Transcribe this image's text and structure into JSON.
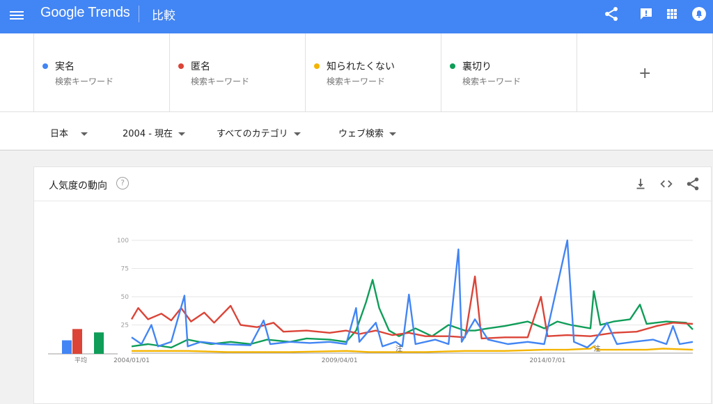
{
  "header": {
    "logo": "Google Trends",
    "title": "比較"
  },
  "terms": [
    {
      "name": "実名",
      "sub": "検索キーワード",
      "color": "#4285f4"
    },
    {
      "name": "匿名",
      "sub": "検索キーワード",
      "color": "#db4437"
    },
    {
      "name": "知られたくない",
      "sub": "検索キーワード",
      "color": "#f4b400"
    },
    {
      "name": "裏切り",
      "sub": "検索キーワード",
      "color": "#0f9d58"
    }
  ],
  "add_term": "+",
  "filters": {
    "region": "日本",
    "period": "2004 - 現在",
    "category": "すべてのカテゴリ",
    "search_type": "ウェブ検索"
  },
  "card": {
    "title": "人気度の動向",
    "help": "?",
    "average_label": "平均"
  },
  "chart_data": {
    "type": "line",
    "x_ticks": [
      "2004/01/01",
      "2009/04/01",
      "2014/07/01"
    ],
    "y_ticks": [
      25,
      50,
      75,
      100
    ],
    "ylim": [
      0,
      100
    ],
    "grid": true,
    "annotation_text": "注",
    "annotations": [
      {
        "x": "2010/10"
      },
      {
        "x": "2015/10"
      }
    ],
    "averages": [
      {
        "name": "実名",
        "value": 12,
        "color": "#4285f4"
      },
      {
        "name": "匿名",
        "value": 22,
        "color": "#db4437"
      },
      {
        "name": "知られたくない",
        "value": 1,
        "color": "#f4b400"
      },
      {
        "name": "裏切り",
        "value": 19,
        "color": "#0f9d58"
      }
    ],
    "x_start": "2004/01",
    "x_end": "2018/03",
    "series": [
      {
        "name": "実名",
        "color": "#4285f4",
        "points": [
          [
            "2004/01",
            14
          ],
          [
            "2004/04",
            8
          ],
          [
            "2004/07",
            25
          ],
          [
            "2004/09",
            6
          ],
          [
            "2005/01",
            10
          ],
          [
            "2005/05",
            51
          ],
          [
            "2005/06",
            6
          ],
          [
            "2005/10",
            10
          ],
          [
            "2006/04",
            8
          ],
          [
            "2007/01",
            7
          ],
          [
            "2007/05",
            29
          ],
          [
            "2007/07",
            8
          ],
          [
            "2008/01",
            10
          ],
          [
            "2008/07",
            9
          ],
          [
            "2009/01",
            10
          ],
          [
            "2009/06",
            8
          ],
          [
            "2009/09",
            40
          ],
          [
            "2009/10",
            10
          ],
          [
            "2010/03",
            27
          ],
          [
            "2010/05",
            6
          ],
          [
            "2010/09",
            10
          ],
          [
            "2010/11",
            6
          ],
          [
            "2011/01",
            52
          ],
          [
            "2011/03",
            8
          ],
          [
            "2011/09",
            12
          ],
          [
            "2012/01",
            8
          ],
          [
            "2012/04",
            92
          ],
          [
            "2012/05",
            10
          ],
          [
            "2012/09",
            30
          ],
          [
            "2013/01",
            12
          ],
          [
            "2013/07",
            8
          ],
          [
            "2014/01",
            10
          ],
          [
            "2014/06",
            8
          ],
          [
            "2015/01",
            100
          ],
          [
            "2015/03",
            10
          ],
          [
            "2015/07",
            5
          ],
          [
            "2015/09",
            10
          ],
          [
            "2016/01",
            27
          ],
          [
            "2016/04",
            8
          ],
          [
            "2016/09",
            10
          ],
          [
            "2017/03",
            12
          ],
          [
            "2017/07",
            8
          ],
          [
            "2017/09",
            24
          ],
          [
            "2017/11",
            8
          ],
          [
            "2018/03",
            10
          ]
        ]
      },
      {
        "name": "匿名",
        "color": "#db4437",
        "points": [
          [
            "2004/01",
            30
          ],
          [
            "2004/03",
            40
          ],
          [
            "2004/06",
            30
          ],
          [
            "2004/10",
            35
          ],
          [
            "2005/01",
            29
          ],
          [
            "2005/04",
            40
          ],
          [
            "2005/07",
            28
          ],
          [
            "2005/11",
            36
          ],
          [
            "2006/02",
            27
          ],
          [
            "2006/07",
            42
          ],
          [
            "2006/10",
            25
          ],
          [
            "2007/03",
            23
          ],
          [
            "2007/08",
            27
          ],
          [
            "2007/11",
            19
          ],
          [
            "2008/06",
            20
          ],
          [
            "2009/01",
            18
          ],
          [
            "2009/06",
            20
          ],
          [
            "2009/10",
            17
          ],
          [
            "2010/03",
            20
          ],
          [
            "2010/08",
            16
          ],
          [
            "2011/01",
            18
          ],
          [
            "2011/06",
            15
          ],
          [
            "2012/01",
            15
          ],
          [
            "2012/06",
            14
          ],
          [
            "2012/09",
            68
          ],
          [
            "2012/11",
            13
          ],
          [
            "2013/06",
            14
          ],
          [
            "2014/01",
            14
          ],
          [
            "2014/05",
            50
          ],
          [
            "2014/07",
            15
          ],
          [
            "2015/01",
            16
          ],
          [
            "2015/08",
            15
          ],
          [
            "2016/03",
            18
          ],
          [
            "2016/10",
            19
          ],
          [
            "2017/04",
            24
          ],
          [
            "2017/09",
            27
          ],
          [
            "2018/03",
            26
          ]
        ]
      },
      {
        "name": "知られたくない",
        "color": "#f4b400",
        "points": [
          [
            "2004/01",
            2
          ],
          [
            "2005/06",
            2
          ],
          [
            "2006/06",
            1
          ],
          [
            "2008/01",
            1
          ],
          [
            "2009/06",
            2
          ],
          [
            "2010/01",
            1
          ],
          [
            "2011/06",
            1
          ],
          [
            "2012/06",
            2
          ],
          [
            "2013/06",
            2
          ],
          [
            "2014/06",
            3
          ],
          [
            "2015/01",
            3
          ],
          [
            "2015/08",
            4
          ],
          [
            "2015/09",
            6
          ],
          [
            "2015/10",
            3
          ],
          [
            "2016/06",
            3
          ],
          [
            "2017/01",
            3
          ],
          [
            "2017/06",
            4
          ],
          [
            "2018/03",
            3
          ]
        ]
      },
      {
        "name": "裏切り",
        "color": "#0f9d58",
        "points": [
          [
            "2004/01",
            6
          ],
          [
            "2004/06",
            8
          ],
          [
            "2005/01",
            5
          ],
          [
            "2005/06",
            12
          ],
          [
            "2006/01",
            8
          ],
          [
            "2006/07",
            10
          ],
          [
            "2007/01",
            8
          ],
          [
            "2007/06",
            12
          ],
          [
            "2008/01",
            10
          ],
          [
            "2008/06",
            13
          ],
          [
            "2009/01",
            12
          ],
          [
            "2009/06",
            10
          ],
          [
            "2009/09",
            20
          ],
          [
            "2009/12",
            45
          ],
          [
            "2010/02",
            65
          ],
          [
            "2010/04",
            40
          ],
          [
            "2010/07",
            20
          ],
          [
            "2010/10",
            15
          ],
          [
            "2011/03",
            22
          ],
          [
            "2011/08",
            15
          ],
          [
            "2012/01",
            25
          ],
          [
            "2012/06",
            20
          ],
          [
            "2012/09",
            20
          ],
          [
            "2013/01",
            22
          ],
          [
            "2013/06",
            24
          ],
          [
            "2014/01",
            28
          ],
          [
            "2014/06",
            22
          ],
          [
            "2014/10",
            28
          ],
          [
            "2015/02",
            25
          ],
          [
            "2015/08",
            22
          ],
          [
            "2015/09",
            55
          ],
          [
            "2015/11",
            25
          ],
          [
            "2016/03",
            28
          ],
          [
            "2016/08",
            30
          ],
          [
            "2016/11",
            43
          ],
          [
            "2017/01",
            26
          ],
          [
            "2017/07",
            28
          ],
          [
            "2018/01",
            27
          ],
          [
            "2018/03",
            21
          ]
        ]
      }
    ]
  }
}
